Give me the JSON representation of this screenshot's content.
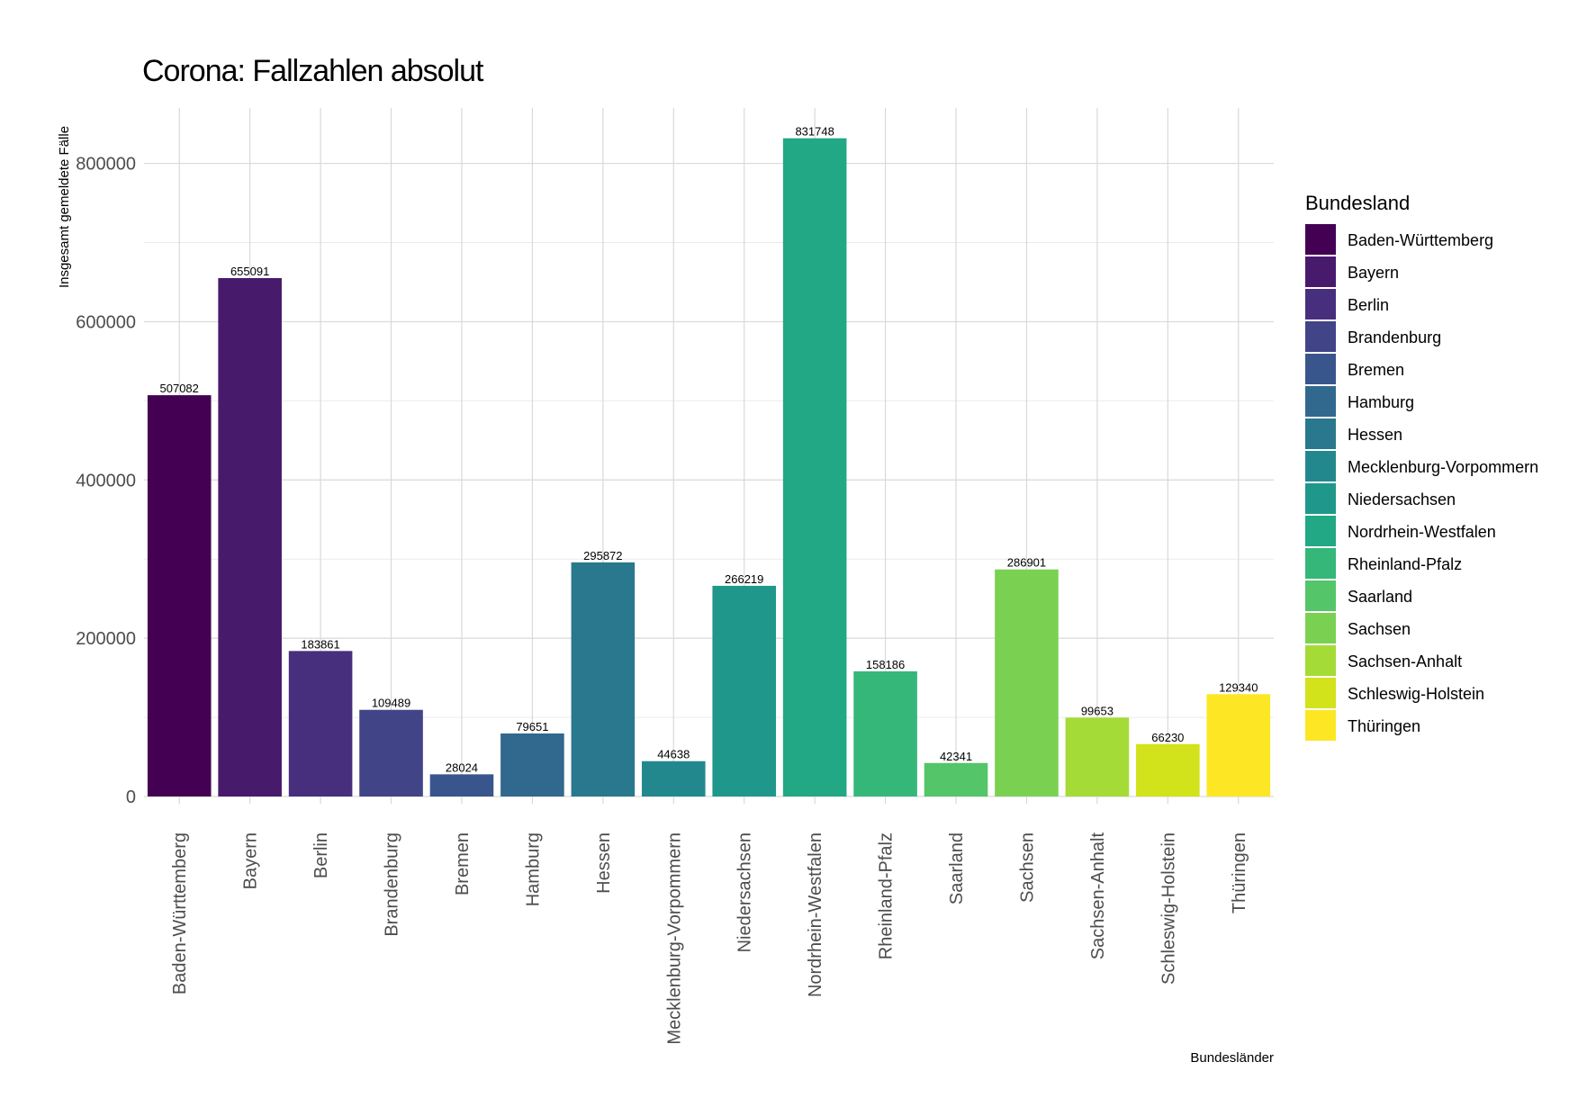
{
  "chart_data": {
    "type": "bar",
    "title": "Corona: Fallzahlen absolut",
    "xlabel": "Bundesländer",
    "ylabel": "Insgesamt gemeldete Fälle",
    "ylim": [
      0,
      870000
    ],
    "yticks": [
      0,
      200000,
      400000,
      600000,
      800000
    ],
    "grid": true,
    "legend": {
      "title": "Bundesland",
      "placement": "right"
    },
    "categories": [
      "Baden-Württemberg",
      "Bayern",
      "Berlin",
      "Brandenburg",
      "Bremen",
      "Hamburg",
      "Hessen",
      "Mecklenburg-Vorpommern",
      "Niedersachsen",
      "Nordrhein-Westfalen",
      "Rheinland-Pfalz",
      "Saarland",
      "Sachsen",
      "Sachsen-Anhalt",
      "Schleswig-Holstein",
      "Thüringen"
    ],
    "values": [
      507082,
      655091,
      183861,
      109489,
      28024,
      79651,
      295872,
      44638,
      266219,
      831748,
      158186,
      42341,
      286901,
      99653,
      66230,
      129340
    ],
    "colors": [
      "#440154",
      "#481A6C",
      "#472F7D",
      "#414487",
      "#39568C",
      "#31688E",
      "#2A788E",
      "#23888E",
      "#1F988B",
      "#22A884",
      "#35B779",
      "#54C568",
      "#7AD151",
      "#A5DB36",
      "#D2E21B",
      "#FDE725"
    ]
  }
}
